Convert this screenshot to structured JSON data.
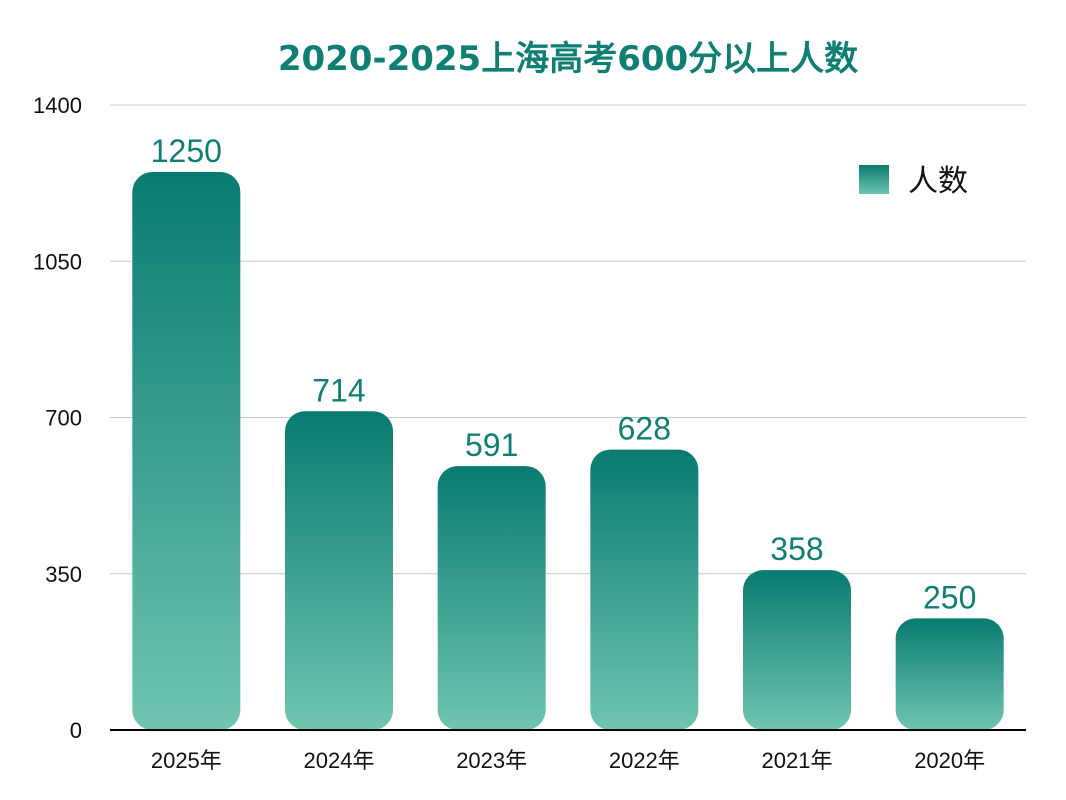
{
  "chart_data": {
    "type": "bar",
    "title": "2020-2025上海高考600分以上人数",
    "categories": [
      "2025年",
      "2024年",
      "2023年",
      "2022年",
      "2021年",
      "2020年"
    ],
    "series": [
      {
        "name": "人数",
        "values": [
          1250,
          714,
          591,
          628,
          358,
          250
        ]
      }
    ],
    "ylim": [
      0,
      1400
    ],
    "yticks": [
      0,
      350,
      700,
      1050,
      1400
    ],
    "grid": true,
    "legend_position": "top-right",
    "data_labels": true,
    "colors": {
      "bar_top": "#087b70",
      "bar_bottom": "#70c5b0",
      "title": "#0e7f72",
      "data_label": "#0e7f72",
      "grid": "#c8c8c8",
      "axis": "#000000"
    }
  }
}
